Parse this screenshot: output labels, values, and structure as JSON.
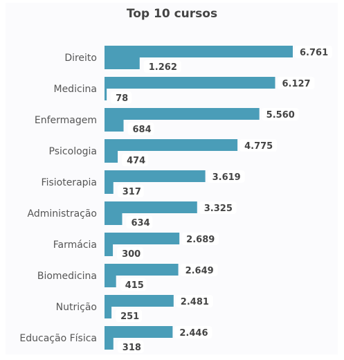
{
  "chart_data": {
    "type": "bar",
    "orientation": "horizontal",
    "title": "Top 10 cursos",
    "categories": [
      "Direito",
      "Medicina",
      "Enfermagem",
      "Psicologia",
      "Fisioterapia",
      "Administração",
      "Farmácia",
      "Biomedicina",
      "Nutrição",
      "Educação Física"
    ],
    "series": [
      {
        "values": [
          6761,
          6127,
          5560,
          4775,
          3619,
          3325,
          2689,
          2649,
          2481,
          2446
        ],
        "labels": [
          "6.761",
          "6.127",
          "5.560",
          "4.775",
          "3.619",
          "3.325",
          "2.689",
          "2.649",
          "2.481",
          "2.446"
        ]
      },
      {
        "values": [
          1262,
          78,
          684,
          474,
          317,
          634,
          300,
          415,
          251,
          318
        ],
        "labels": [
          "1.262",
          "78",
          "684",
          "474",
          "317",
          "634",
          "300",
          "415",
          "251",
          "318"
        ]
      }
    ],
    "xlim": [
      0,
      6761
    ],
    "grid": false,
    "legend": "none",
    "colors": {
      "bar": "#4a9db8",
      "label_bg": "#ffffff",
      "text": "#444444"
    }
  }
}
